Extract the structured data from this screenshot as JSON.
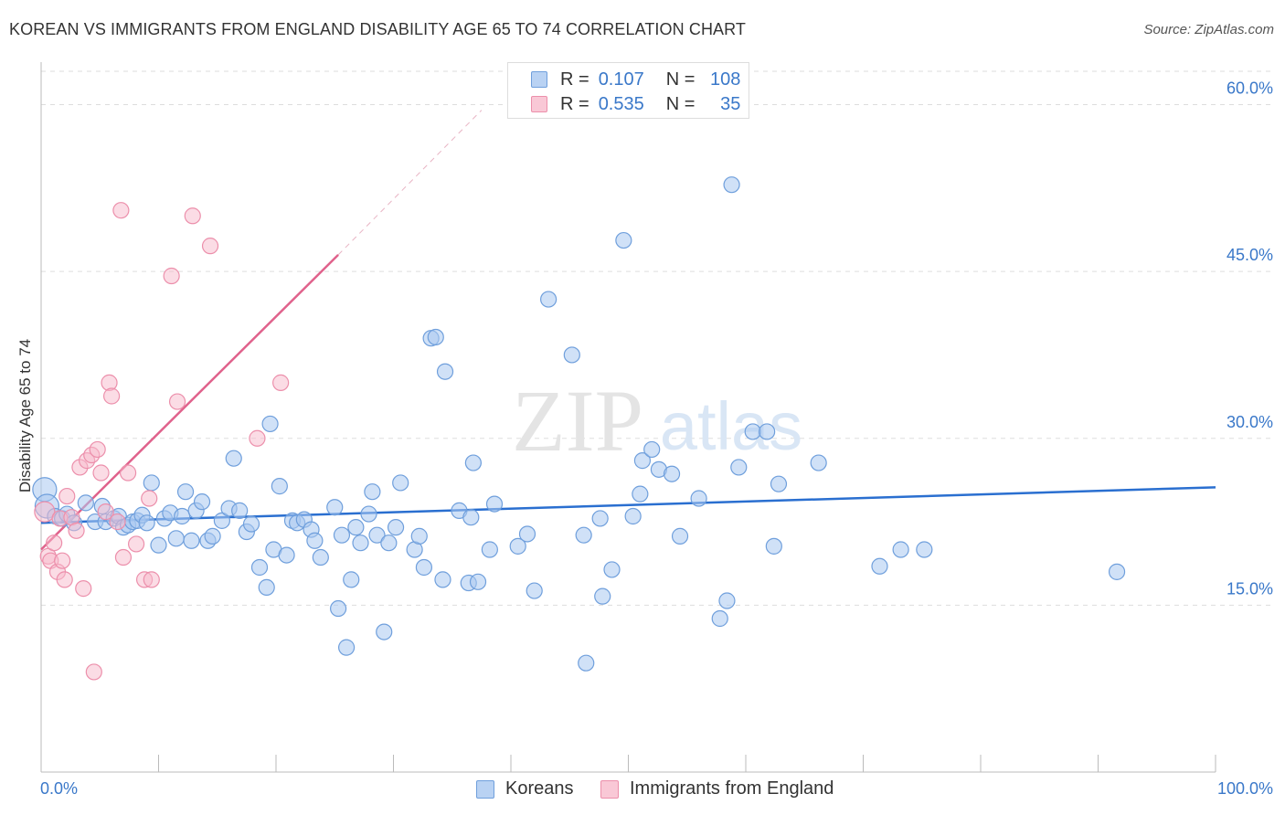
{
  "title": "KOREAN VS IMMIGRANTS FROM ENGLAND DISABILITY AGE 65 TO 74 CORRELATION CHART",
  "source": "Source: ZipAtlas.com",
  "watermark": {
    "zip": "ZIP",
    "atlas": "atlas"
  },
  "legend": {
    "rows": [
      {
        "r_key": "R =",
        "r_val": "0.107",
        "n_key": "N =",
        "n_val": "108"
      },
      {
        "r_key": "R =",
        "r_val": "0.535",
        "n_key": "N =",
        "n_val": "35"
      }
    ]
  },
  "bottom_legend": {
    "koreans": "Koreans",
    "england": "Immigrants from England"
  },
  "colors": {
    "koreans_fill": "#a9c8f0",
    "koreans_stroke": "#6f9fdc",
    "koreans_line": "#2a6fd0",
    "england_fill": "#f7b9cb",
    "england_stroke": "#ec8fab",
    "england_line": "#e0628c",
    "axis_label": "#3a78c9",
    "grid": "#dddddd"
  },
  "chart_data": {
    "type": "scatter",
    "title": "KOREAN VS IMMIGRANTS FROM ENGLAND DISABILITY AGE 65 TO 74 CORRELATION CHART",
    "xlabel": "",
    "ylabel": "Disability Age 65 to 74",
    "xlim": [
      0,
      100
    ],
    "ylim": [
      0,
      63
    ],
    "x_tick_labels": [
      "0.0%",
      "100.0%"
    ],
    "y_ticks": [
      15,
      30,
      45,
      60
    ],
    "y_tick_labels": [
      "15.0%",
      "30.0%",
      "45.0%",
      "60.0%"
    ],
    "grid": true,
    "legend_position": "top-center",
    "series": [
      {
        "name": "Koreans",
        "R": 0.107,
        "N": 108,
        "trend": {
          "x": [
            0,
            100
          ],
          "y": [
            22.4,
            25.6
          ]
        },
        "points": [
          [
            0.3,
            25.4
          ],
          [
            0.5,
            23.9
          ],
          [
            1.2,
            23.0
          ],
          [
            1.8,
            22.8
          ],
          [
            2.2,
            23.2
          ],
          [
            2.8,
            22.4
          ],
          [
            3.8,
            24.2
          ],
          [
            4.6,
            22.5
          ],
          [
            5.2,
            23.9
          ],
          [
            5.5,
            22.5
          ],
          [
            6.2,
            22.8
          ],
          [
            6.6,
            23.0
          ],
          [
            7.0,
            22.0
          ],
          [
            7.4,
            22.2
          ],
          [
            7.8,
            22.5
          ],
          [
            8.2,
            22.6
          ],
          [
            8.6,
            23.1
          ],
          [
            9.0,
            22.4
          ],
          [
            9.4,
            26.0
          ],
          [
            10.0,
            20.4
          ],
          [
            10.5,
            22.8
          ],
          [
            11.0,
            23.3
          ],
          [
            11.5,
            21.0
          ],
          [
            12.0,
            23.0
          ],
          [
            12.3,
            25.2
          ],
          [
            12.8,
            20.8
          ],
          [
            13.2,
            23.5
          ],
          [
            13.7,
            24.3
          ],
          [
            14.2,
            20.8
          ],
          [
            14.6,
            21.2
          ],
          [
            15.4,
            22.6
          ],
          [
            16.0,
            23.7
          ],
          [
            16.4,
            28.2
          ],
          [
            16.9,
            23.5
          ],
          [
            17.5,
            21.6
          ],
          [
            17.9,
            22.3
          ],
          [
            18.6,
            18.4
          ],
          [
            19.2,
            16.6
          ],
          [
            19.5,
            31.3
          ],
          [
            19.8,
            20.0
          ],
          [
            20.3,
            25.7
          ],
          [
            20.9,
            19.5
          ],
          [
            21.4,
            22.6
          ],
          [
            21.8,
            22.4
          ],
          [
            22.4,
            22.7
          ],
          [
            23.0,
            21.8
          ],
          [
            23.3,
            20.8
          ],
          [
            23.8,
            19.3
          ],
          [
            25.0,
            23.8
          ],
          [
            25.3,
            14.7
          ],
          [
            25.6,
            21.3
          ],
          [
            26.0,
            11.2
          ],
          [
            26.4,
            17.3
          ],
          [
            26.8,
            22.0
          ],
          [
            27.2,
            20.6
          ],
          [
            27.9,
            23.2
          ],
          [
            28.2,
            25.2
          ],
          [
            28.6,
            21.3
          ],
          [
            29.2,
            12.6
          ],
          [
            29.6,
            20.6
          ],
          [
            30.2,
            22.0
          ],
          [
            30.6,
            26.0
          ],
          [
            31.8,
            20.0
          ],
          [
            32.2,
            21.2
          ],
          [
            32.6,
            18.4
          ],
          [
            33.2,
            39.0
          ],
          [
            33.6,
            39.1
          ],
          [
            34.2,
            17.3
          ],
          [
            34.4,
            36.0
          ],
          [
            35.6,
            23.5
          ],
          [
            36.4,
            17.0
          ],
          [
            36.6,
            22.9
          ],
          [
            36.8,
            27.8
          ],
          [
            37.2,
            17.1
          ],
          [
            38.2,
            20.0
          ],
          [
            38.6,
            24.1
          ],
          [
            40.6,
            20.3
          ],
          [
            41.4,
            21.4
          ],
          [
            42.0,
            16.3
          ],
          [
            43.2,
            42.5
          ],
          [
            45.2,
            37.5
          ],
          [
            46.2,
            21.3
          ],
          [
            46.4,
            9.8
          ],
          [
            47.6,
            22.8
          ],
          [
            47.8,
            15.8
          ],
          [
            48.6,
            18.2
          ],
          [
            49.6,
            47.8
          ],
          [
            50.4,
            23.0
          ],
          [
            51.0,
            25.0
          ],
          [
            51.2,
            28.0
          ],
          [
            52.0,
            29.0
          ],
          [
            52.6,
            27.2
          ],
          [
            53.7,
            26.8
          ],
          [
            54.4,
            21.2
          ],
          [
            56.0,
            24.6
          ],
          [
            57.8,
            13.8
          ],
          [
            58.4,
            15.4
          ],
          [
            58.8,
            52.8
          ],
          [
            59.4,
            27.4
          ],
          [
            60.6,
            30.6
          ],
          [
            61.8,
            30.6
          ],
          [
            62.4,
            20.3
          ],
          [
            62.8,
            25.9
          ],
          [
            66.2,
            27.8
          ],
          [
            71.4,
            18.5
          ],
          [
            73.2,
            20.0
          ],
          [
            75.2,
            20.0
          ],
          [
            91.6,
            18.0
          ]
        ]
      },
      {
        "name": "Immigrants from England",
        "R": 0.535,
        "N": 35,
        "trend": {
          "x": [
            0,
            25.3
          ],
          "y": [
            20.0,
            46.5
          ],
          "dashed_extension": {
            "x": [
              25.3,
              37.5
            ],
            "y": [
              46.5,
              59.5
            ]
          }
        },
        "points": [
          [
            0.3,
            23.4
          ],
          [
            0.6,
            19.4
          ],
          [
            0.8,
            19.0
          ],
          [
            1.1,
            20.6
          ],
          [
            1.4,
            18.0
          ],
          [
            1.6,
            22.8
          ],
          [
            1.8,
            19.0
          ],
          [
            2.0,
            17.3
          ],
          [
            2.2,
            24.8
          ],
          [
            2.6,
            22.9
          ],
          [
            3.0,
            21.7
          ],
          [
            3.3,
            27.4
          ],
          [
            3.6,
            16.5
          ],
          [
            3.9,
            28.0
          ],
          [
            4.3,
            28.5
          ],
          [
            4.5,
            9.0
          ],
          [
            4.8,
            29.0
          ],
          [
            5.1,
            26.9
          ],
          [
            5.5,
            23.4
          ],
          [
            5.8,
            35.0
          ],
          [
            6.0,
            33.8
          ],
          [
            6.5,
            22.5
          ],
          [
            6.8,
            50.5
          ],
          [
            7.0,
            19.3
          ],
          [
            7.4,
            26.9
          ],
          [
            8.1,
            20.5
          ],
          [
            8.8,
            17.3
          ],
          [
            9.2,
            24.6
          ],
          [
            9.4,
            17.3
          ],
          [
            11.1,
            44.6
          ],
          [
            11.6,
            33.3
          ],
          [
            12.9,
            50.0
          ],
          [
            14.4,
            47.3
          ],
          [
            18.4,
            30.0
          ],
          [
            20.4,
            35.0
          ]
        ]
      }
    ]
  }
}
